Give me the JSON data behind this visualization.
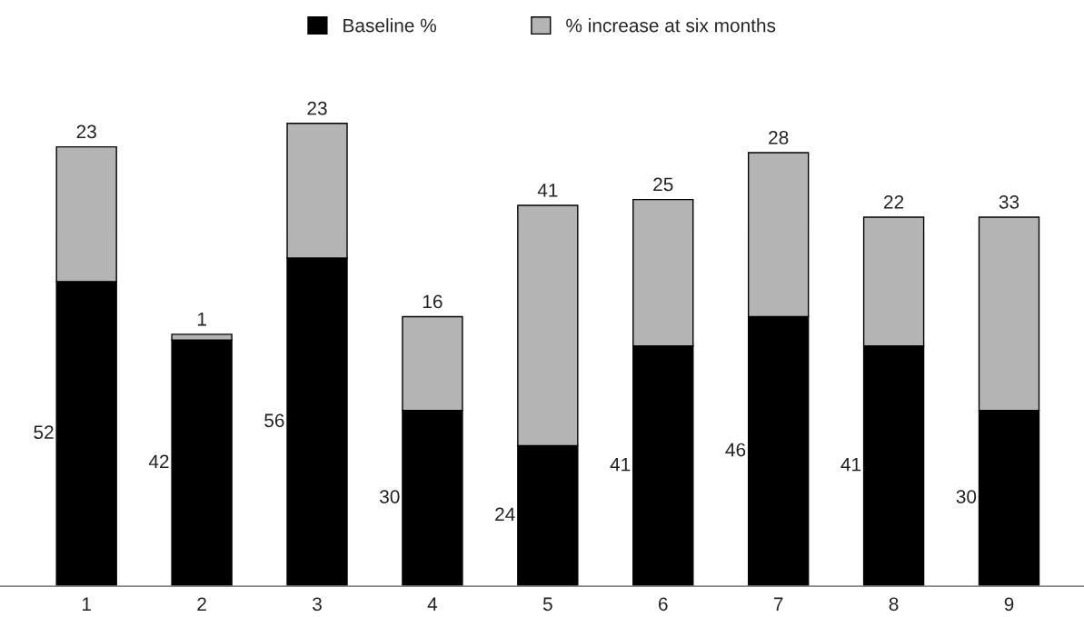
{
  "chart_data": {
    "type": "bar",
    "stacked": true,
    "categories": [
      "1",
      "2",
      "3",
      "4",
      "5",
      "6",
      "7",
      "8",
      "9"
    ],
    "series": [
      {
        "name": "Baseline %",
        "color": "#000000",
        "values": [
          52,
          42,
          56,
          30,
          24,
          41,
          46,
          41,
          30
        ]
      },
      {
        "name": "% increase at six months",
        "color": "#b4b4b4",
        "values": [
          23,
          1,
          23,
          16,
          41,
          25,
          28,
          22,
          33
        ]
      }
    ],
    "data_labels": true,
    "legend": "top",
    "grid": false
  }
}
